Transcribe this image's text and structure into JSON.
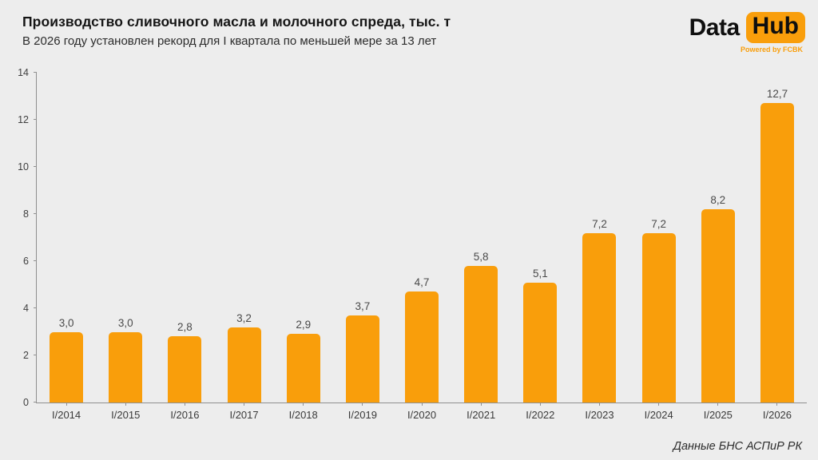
{
  "header": {
    "title": "Производство сливочного масла и молочного спреда, тыс. т",
    "subtitle": "В 2026 году установлен рекорд для I квартала по меньшей мере за 13 лет"
  },
  "logo": {
    "part_data": "Data",
    "part_hub": "Hub",
    "tagline": "Powered by FCBK"
  },
  "source_note": "Данные БНС АСПиР РК",
  "colors": {
    "accent_orange": "#F99E0B",
    "background": "#EDEDED",
    "axis": "#8F8F8F",
    "title_text": "#151515",
    "value_label_text": "#4A4A4A"
  },
  "chart_data": {
    "type": "bar",
    "title": "Производство сливочного масла и молочного спреда, тыс. т",
    "subtitle": "В 2026 году установлен рекорд для I квартала по меньшей мере за 13 лет",
    "categories": [
      "I/2014",
      "I/2015",
      "I/2016",
      "I/2017",
      "I/2018",
      "I/2019",
      "I/2020",
      "I/2021",
      "I/2022",
      "I/2023",
      "I/2024",
      "I/2025",
      "I/2026"
    ],
    "values": [
      3.0,
      3.0,
      2.8,
      3.2,
      2.9,
      3.7,
      4.7,
      5.8,
      5.1,
      7.2,
      7.2,
      8.2,
      12.7
    ],
    "value_labels": [
      "3,0",
      "3,0",
      "2,8",
      "3,2",
      "2,9",
      "3,7",
      "4,7",
      "5,8",
      "5,1",
      "7,2",
      "7,2",
      "8,2",
      "12,7"
    ],
    "xlabel": "",
    "ylabel": "",
    "ylim": [
      0,
      14
    ],
    "yticks": [
      0,
      2,
      4,
      6,
      8,
      10,
      12,
      14
    ],
    "grid": false,
    "legend": false,
    "bar_color": "#F99E0B",
    "source": "Данные БНС АСПиР РК"
  }
}
